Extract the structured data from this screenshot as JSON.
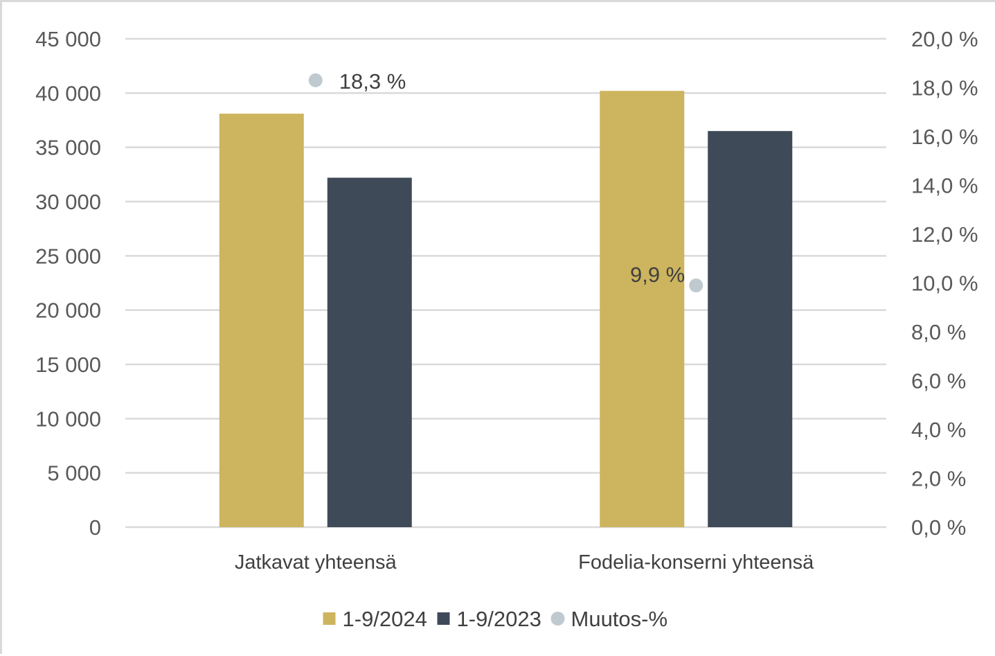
{
  "chart_data": {
    "type": "bar",
    "categories": [
      "Jatkavat yhteensä",
      "Fodelia-konserni yhteensä"
    ],
    "series": [
      {
        "name": "1-9/2024",
        "values": [
          38100,
          40200
        ],
        "color": "#cdb45e",
        "axis": "left",
        "kind": "bar"
      },
      {
        "name": "1-9/2023",
        "values": [
          32200,
          36500
        ],
        "color": "#3f4a59",
        "axis": "left",
        "kind": "bar"
      },
      {
        "name": "Muutos-%",
        "values": [
          18.3,
          9.9
        ],
        "labels": [
          "18,3 %",
          "9,9 %"
        ],
        "color": "#bfcad0",
        "axis": "right",
        "kind": "marker"
      }
    ],
    "ylim": [
      0,
      45000
    ],
    "y_ticks": [
      0,
      5000,
      10000,
      15000,
      20000,
      25000,
      30000,
      35000,
      40000,
      45000
    ],
    "y_tick_labels": [
      "0",
      "5 000",
      "10 000",
      "15 000",
      "20 000",
      "25 000",
      "30 000",
      "35 000",
      "40 000",
      "45 000"
    ],
    "y2lim": [
      0,
      20
    ],
    "y2_ticks": [
      0,
      2,
      4,
      6,
      8,
      10,
      12,
      14,
      16,
      18,
      20
    ],
    "y2_tick_labels": [
      "0,0 %",
      "2,0 %",
      "4,0 %",
      "6,0 %",
      "8,0 %",
      "10,0 %",
      "12,0 %",
      "14,0 %",
      "16,0 %",
      "18,0 %",
      "20,0 %"
    ],
    "grid": true,
    "legend": "bottom",
    "title": "",
    "xlabel": "",
    "ylabel": ""
  }
}
